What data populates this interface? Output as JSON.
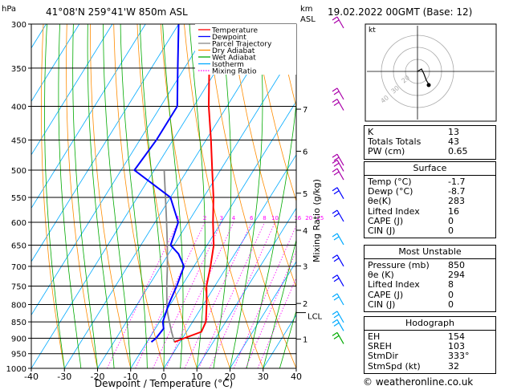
{
  "header": {
    "hpa_unit": "hPa",
    "location": "41°08'N  259°41'W  850m  ASL",
    "km_unit": "km",
    "asl": "ASL",
    "datetime": "19.02.2022  00GMT  (Base: 12)"
  },
  "chart_data": {
    "type": "skew-t log-p",
    "xlabel": "Dewpoint / Temperature (°C)",
    "xlim": [
      -40,
      40
    ],
    "x_ticks": [
      -40,
      -30,
      -20,
      -10,
      0,
      10,
      20,
      30,
      40
    ],
    "ylabel_left": "hPa",
    "y_ticks_pressure": [
      300,
      350,
      400,
      450,
      500,
      550,
      600,
      650,
      700,
      750,
      800,
      850,
      900,
      950,
      1000
    ],
    "ylim_pressure": [
      1000,
      300
    ],
    "km_ticks": [
      {
        "label": "7",
        "p": 404
      },
      {
        "label": "6",
        "p": 468
      },
      {
        "label": "5",
        "p": 542
      },
      {
        "label": "4",
        "p": 617
      },
      {
        "label": "3",
        "p": 699
      },
      {
        "label": "2",
        "p": 797
      },
      {
        "label": "1",
        "p": 903
      }
    ],
    "lcl": {
      "label": "LCL",
      "p": 823
    },
    "mixing_ratio_axis_label": "Mixing Ratio (g/kg)",
    "mixing_ratio_labels": [
      "1",
      "2",
      "3",
      "4",
      "6",
      "8",
      "10",
      "16",
      "20",
      "25"
    ],
    "mixing_ratio_values": [
      1,
      2,
      3,
      4,
      6,
      8,
      10,
      16,
      20,
      25
    ],
    "legend": [
      "Temperature",
      "Dewpoint",
      "Parcel Trajectory",
      "Dry Adiabat",
      "Wet Adiabat",
      "Isotherm",
      "Mixing Ratio"
    ],
    "legend_colors": [
      "#ff0000",
      "#0000ff",
      "#888888",
      "#ff8c00",
      "#00aa00",
      "#00aaff",
      "#ff00ff"
    ],
    "temperature": [
      {
        "p": 912,
        "t": -1.7
      },
      {
        "p": 900,
        "t": 0.5
      },
      {
        "p": 880,
        "t": 4.5
      },
      {
        "p": 850,
        "t": 4.0
      },
      {
        "p": 800,
        "t": 1.0
      },
      {
        "p": 750,
        "t": -2.5
      },
      {
        "p": 700,
        "t": -5.0
      },
      {
        "p": 650,
        "t": -8.0
      },
      {
        "p": 600,
        "t": -12.5
      },
      {
        "p": 550,
        "t": -17.0
      },
      {
        "p": 500,
        "t": -22.5
      },
      {
        "p": 450,
        "t": -28.5
      },
      {
        "p": 400,
        "t": -35.5
      },
      {
        "p": 350,
        "t": -42.5
      },
      {
        "p": 300,
        "t": -50.0
      }
    ],
    "dewpoint": [
      {
        "p": 912,
        "t": -8.7
      },
      {
        "p": 900,
        "t": -8.0
      },
      {
        "p": 870,
        "t": -7.5
      },
      {
        "p": 850,
        "t": -9.0
      },
      {
        "p": 800,
        "t": -10.5
      },
      {
        "p": 750,
        "t": -11.5
      },
      {
        "p": 700,
        "t": -13.0
      },
      {
        "p": 670,
        "t": -17.0
      },
      {
        "p": 650,
        "t": -21.0
      },
      {
        "p": 600,
        "t": -23.0
      },
      {
        "p": 550,
        "t": -30.0
      },
      {
        "p": 500,
        "t": -46.0
      },
      {
        "p": 450,
        "t": -45.0
      },
      {
        "p": 400,
        "t": -45.0
      },
      {
        "p": 350,
        "t": -52.0
      },
      {
        "p": 300,
        "t": -60.0
      }
    ],
    "parcel": [
      {
        "p": 912,
        "t": -1.7
      },
      {
        "p": 880,
        "t": -4.5
      },
      {
        "p": 850,
        "t": -7.0
      },
      {
        "p": 823,
        "t": -9.3
      },
      {
        "p": 800,
        "t": -11.0
      },
      {
        "p": 750,
        "t": -14.5
      },
      {
        "p": 700,
        "t": -18.0
      },
      {
        "p": 650,
        "t": -22.0
      },
      {
        "p": 600,
        "t": -26.5
      },
      {
        "p": 550,
        "t": -31.5
      },
      {
        "p": 500,
        "t": -37.0
      }
    ]
  },
  "hodograph": {
    "unit_label": "kt",
    "ring_labels": [
      "20",
      "30",
      "40"
    ]
  },
  "indices": [
    {
      "label": "K",
      "value": "13"
    },
    {
      "label": "Totals Totals",
      "value": "43"
    },
    {
      "label": "PW (cm)",
      "value": "0.65"
    }
  ],
  "surface": {
    "title": "Surface",
    "rows": [
      {
        "label": "Temp (°C)",
        "value": "-1.7"
      },
      {
        "label": "Dewp (°C)",
        "value": "-8.7"
      },
      {
        "label": "θe(K)",
        "value": "283"
      },
      {
        "label": "Lifted Index",
        "value": "16"
      },
      {
        "label": "CAPE (J)",
        "value": "0"
      },
      {
        "label": "CIN (J)",
        "value": "0"
      }
    ]
  },
  "most_unstable": {
    "title": "Most Unstable",
    "rows": [
      {
        "label": "Pressure (mb)",
        "value": "850"
      },
      {
        "label": "θe (K)",
        "value": "294"
      },
      {
        "label": "Lifted Index",
        "value": "8"
      },
      {
        "label": "CAPE (J)",
        "value": "0"
      },
      {
        "label": "CIN (J)",
        "value": "0"
      }
    ]
  },
  "hodograph_table": {
    "title": "Hodograph",
    "rows": [
      {
        "label": "EH",
        "value": "154"
      },
      {
        "label": "SREH",
        "value": "103"
      },
      {
        "label": "StmDir",
        "value": "333°"
      },
      {
        "label": "StmSpd (kt)",
        "value": "32"
      }
    ]
  },
  "footer": "© weatheronline.co.uk"
}
